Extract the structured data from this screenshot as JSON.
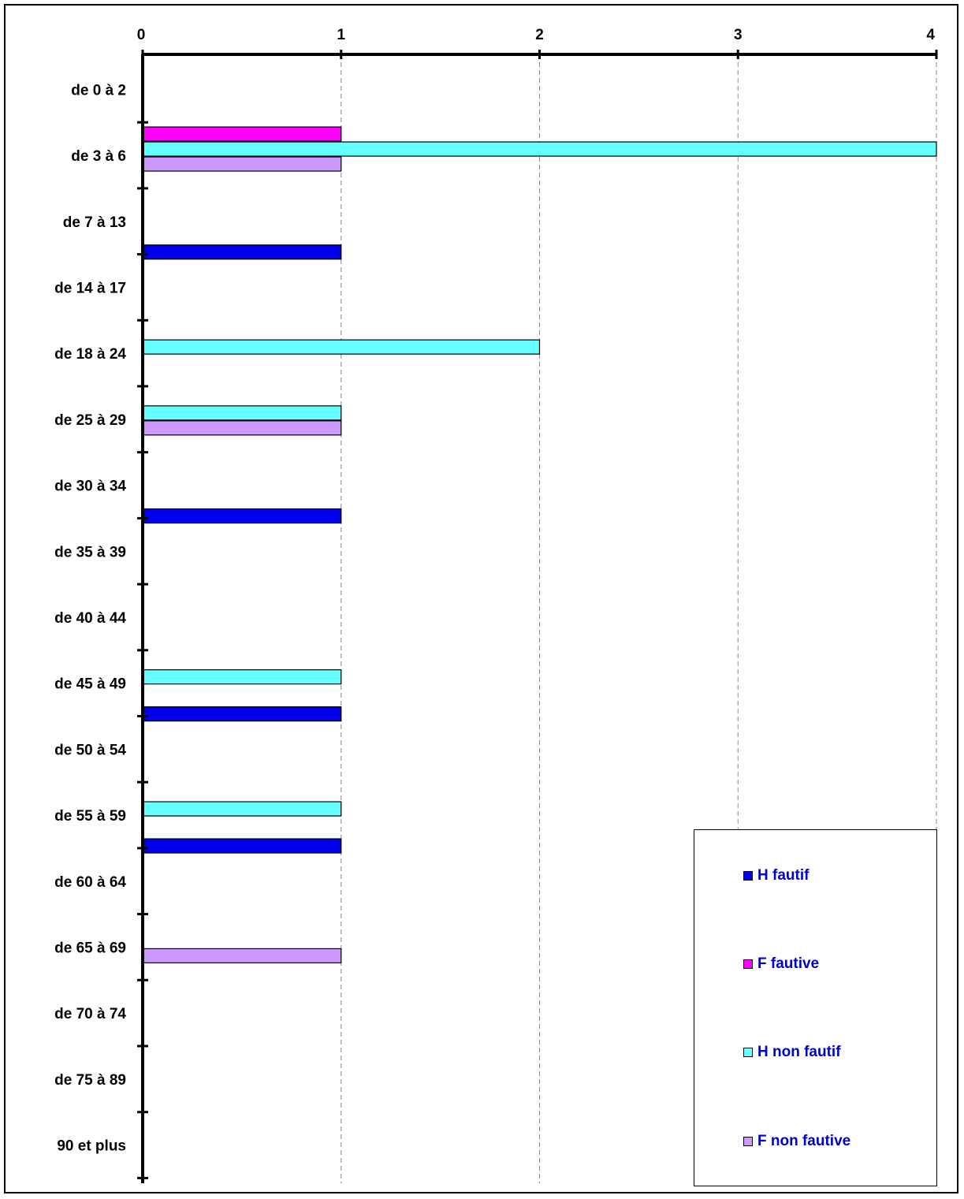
{
  "chart_data": {
    "type": "bar",
    "orientation": "horizontal",
    "title": "",
    "xlabel": "",
    "ylabel": "",
    "xlim": [
      0,
      4
    ],
    "x_ticks": [
      "0",
      "1",
      "2",
      "3",
      "4"
    ],
    "categories": [
      "de 0 à 2",
      "de 3 à 6",
      "de 7 à 13",
      "de 14 à 17",
      "de 18 à 24",
      "de 25 à 29",
      "de 30 à 34",
      "de 35 à 39",
      "de 40 à 44",
      "de 45 à 49",
      "de 50 à 54",
      "de 55 à 59",
      "de 60 à 64",
      "de 65 à 69",
      "de 70 à 74",
      "de 75 à 89",
      "90 et plus"
    ],
    "series": [
      {
        "name": "H fautif",
        "color": "#0000ee",
        "values": [
          0,
          0,
          1,
          0,
          0,
          0,
          1,
          0,
          0,
          1,
          0,
          1,
          0,
          0,
          0,
          0,
          0
        ]
      },
      {
        "name": "F fautive",
        "color": "#ff00ff",
        "values": [
          0,
          1,
          0,
          0,
          0,
          0,
          0,
          0,
          0,
          0,
          0,
          0,
          0,
          0,
          0,
          0,
          0
        ]
      },
      {
        "name": "H non fautif",
        "color": "#66ffff",
        "values": [
          0,
          4,
          0,
          0,
          2,
          1,
          0,
          0,
          0,
          1,
          0,
          1,
          0,
          0,
          0,
          0,
          0
        ]
      },
      {
        "name": "F non fautive",
        "color": "#cc99ff",
        "values": [
          0,
          1,
          0,
          0,
          0,
          1,
          0,
          0,
          0,
          0,
          0,
          0,
          0,
          1,
          0,
          0,
          0
        ]
      }
    ],
    "grid": "vertical dashed",
    "x_axis_position": "top",
    "legend_position": "bottom-right"
  }
}
